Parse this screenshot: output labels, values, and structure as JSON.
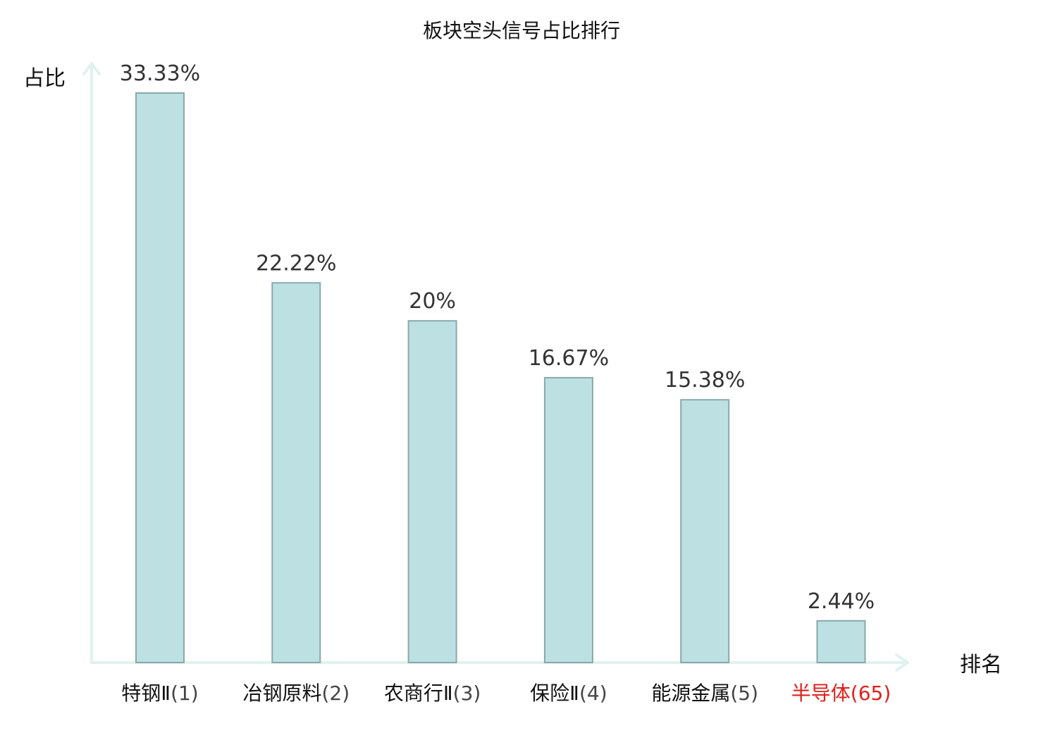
{
  "chart_data": {
    "type": "bar",
    "title": "板块空头信号占比排行",
    "ylabel": "占比",
    "xlabel": "排名",
    "ylim": [
      0,
      35
    ],
    "grid": false,
    "categories": [
      {
        "name": "特钢Ⅱ",
        "rank": "(1)",
        "highlight": false
      },
      {
        "name": "冶钢原料",
        "rank": "(2)",
        "highlight": false
      },
      {
        "name": "农商行Ⅱ",
        "rank": "(3)",
        "highlight": false
      },
      {
        "name": "保险Ⅱ",
        "rank": "(4)",
        "highlight": false
      },
      {
        "name": "能源金属",
        "rank": "(5)",
        "highlight": false
      },
      {
        "name": "半导体",
        "rank": "(65)",
        "highlight": true
      }
    ],
    "values": [
      33.33,
      22.22,
      20,
      16.67,
      15.38,
      2.44
    ],
    "value_labels": [
      "33.33%",
      "22.22%",
      "20%",
      "16.67%",
      "15.38%",
      "2.44%"
    ],
    "colors": {
      "bar_fill": "#bde0e3",
      "bar_stroke": "#8aa8ab",
      "axis": "#e0f2ef",
      "highlight": "#e0201b"
    }
  }
}
